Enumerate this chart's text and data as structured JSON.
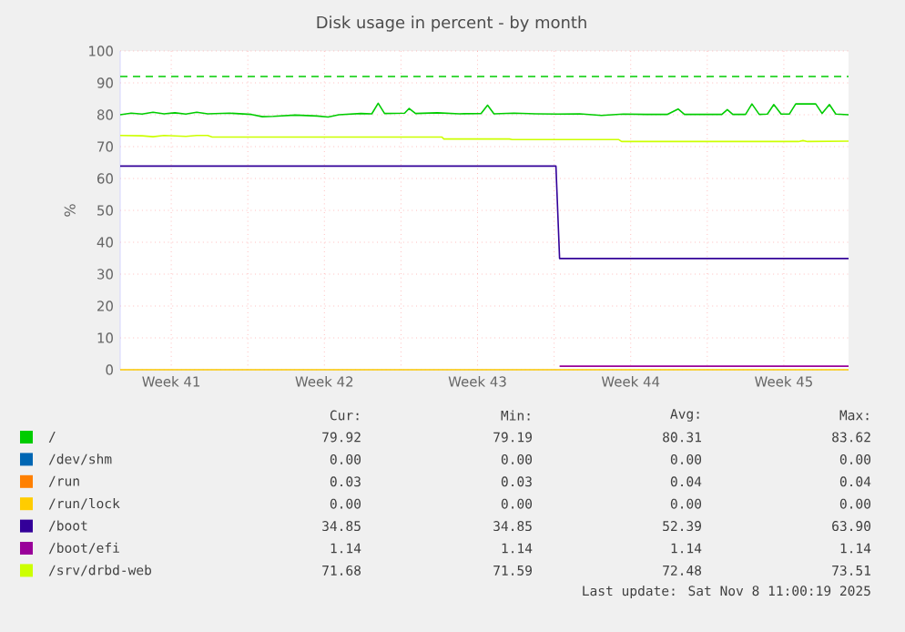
{
  "chart_data": {
    "type": "line",
    "title": "Disk usage in percent - by month",
    "ylabel": "%",
    "xlim": [
      "2025-10-06T04:00",
      "2025-11-08T11:00"
    ],
    "xticks": [
      {
        "value": "2025-10-08T12:00",
        "label": "Week 41"
      },
      {
        "value": "2025-10-12T00:00",
        "label": null
      },
      {
        "value": "2025-10-15T12:00",
        "label": "Week 42"
      },
      {
        "value": "2025-10-19T00:00",
        "label": null
      },
      {
        "value": "2025-10-22T12:00",
        "label": "Week 43"
      },
      {
        "value": "2025-10-26T00:00",
        "label": null
      },
      {
        "value": "2025-10-29T12:00",
        "label": "Week 44"
      },
      {
        "value": "2025-11-02T00:00",
        "label": null
      },
      {
        "value": "2025-11-05T12:00",
        "label": "Week 45"
      }
    ],
    "ylim": [
      0,
      100
    ],
    "yticks": [
      0,
      10,
      20,
      30,
      40,
      50,
      60,
      70,
      80,
      90,
      100
    ],
    "grid": true,
    "legend": "bottom",
    "marker": "none",
    "line_style": "solid",
    "ref_lines": [
      {
        "axis": "y",
        "value": 92,
        "color": "#00cc00",
        "line_style": "dashed"
      }
    ],
    "series": [
      {
        "name": "/",
        "color": "#00cc00",
        "x": [
          "2025-10-06T04:00",
          "2025-10-06T16:00",
          "2025-10-07T04:00",
          "2025-10-07T16:00",
          "2025-10-08T04:00",
          "2025-10-08T16:00",
          "2025-10-09T04:00",
          "2025-10-09T16:00",
          "2025-10-10T04:00",
          "2025-10-11T04:00",
          "2025-10-12T04:00",
          "2025-10-12T16:00",
          "2025-10-13T04:00",
          "2025-10-14T04:00",
          "2025-10-15T04:00",
          "2025-10-15T16:00",
          "2025-10-16T04:00",
          "2025-10-17T04:00",
          "2025-10-17T16:00",
          "2025-10-17T23:00",
          "2025-10-18T06:00",
          "2025-10-19T04:00",
          "2025-10-19T09:00",
          "2025-10-19T16:00",
          "2025-10-20T16:00",
          "2025-10-21T16:00",
          "2025-10-22T16:00",
          "2025-10-22T23:00",
          "2025-10-23T06:00",
          "2025-10-24T04:00",
          "2025-10-25T04:00",
          "2025-10-26T04:00",
          "2025-10-27T04:00",
          "2025-10-28T04:00",
          "2025-10-29T04:00",
          "2025-10-30T04:00",
          "2025-10-31T04:00",
          "2025-10-31T16:00",
          "2025-10-31T23:00",
          "2025-11-02T16:00",
          "2025-11-02T22:00",
          "2025-11-03T04:00",
          "2025-11-03T18:00",
          "2025-11-04T01:00",
          "2025-11-04T09:00",
          "2025-11-04T18:00",
          "2025-11-05T01:00",
          "2025-11-05T09:00",
          "2025-11-05T18:00",
          "2025-11-06T01:00",
          "2025-11-06T23:00",
          "2025-11-07T06:00",
          "2025-11-07T14:00",
          "2025-11-07T21:00",
          "2025-11-08T11:00"
        ],
        "values": [
          80,
          80.5,
          80.2,
          80.8,
          80.3,
          80.6,
          80.2,
          80.8,
          80.3,
          80.5,
          80.1,
          79.4,
          79.5,
          79.9,
          79.6,
          79.3,
          80,
          80.4,
          80.3,
          83.6,
          80.4,
          80.5,
          82,
          80.4,
          80.6,
          80.3,
          80.4,
          83,
          80.3,
          80.5,
          80.3,
          80.2,
          80.3,
          79.8,
          80.2,
          80.1,
          80.1,
          81.8,
          80.1,
          80.1,
          81.6,
          80.1,
          80.1,
          83.4,
          80.1,
          80.2,
          83.2,
          80.2,
          80.2,
          83.4,
          83.4,
          80.4,
          83.2,
          80.2,
          80
        ]
      },
      {
        "name": "/dev/shm",
        "color": "#0066b3"
      },
      {
        "name": "/run",
        "color": "#ff8000"
      },
      {
        "name": "/run/lock",
        "color": "#ffcc00",
        "x": [
          "2025-10-06T04:00",
          "2025-11-08T11:00"
        ],
        "values": [
          0,
          0
        ]
      },
      {
        "name": "/boot",
        "color": "#330099",
        "x": [
          "2025-10-06T04:00",
          "2025-10-26T02:00",
          "2025-10-26T06:00",
          "2025-11-08T11:00"
        ],
        "values": [
          63.9,
          63.9,
          34.9,
          34.9
        ]
      },
      {
        "name": "/boot/efi",
        "color": "#990099",
        "x": [
          "2025-10-26T06:00",
          "2025-11-08T11:00"
        ],
        "values": [
          1.1,
          1.1
        ]
      },
      {
        "name": "/srv/drbd-web",
        "color": "#ccff00",
        "x": [
          "2025-10-06T04:00",
          "2025-10-07T04:00",
          "2025-10-07T16:00",
          "2025-10-08T04:00",
          "2025-10-09T04:00",
          "2025-10-09T16:00",
          "2025-10-10T04:00",
          "2025-10-10T09:00",
          "2025-10-20T21:00",
          "2025-10-20T23:00",
          "2025-10-23T23:00",
          "2025-10-24T02:00",
          "2025-10-28T23:00",
          "2025-10-29T02:00",
          "2025-11-06T04:00",
          "2025-11-06T09:00",
          "2025-11-06T14:00",
          "2025-11-08T11:00"
        ],
        "values": [
          73.5,
          73.4,
          73.1,
          73.5,
          73.2,
          73.5,
          73.5,
          73,
          73,
          72.4,
          72.4,
          72.2,
          72.2,
          71.6,
          71.6,
          71.9,
          71.6,
          71.7
        ]
      }
    ],
    "annotations": [
      "Cur:",
      "Min:",
      "Avg:",
      "Max:",
      "79.92",
      "79.19",
      "80.31",
      "83.62",
      "0.00",
      "0.00",
      "0.00",
      "0.00",
      "0.03",
      "0.03",
      "0.04",
      "0.04",
      "0.00",
      "0.00",
      "0.00",
      "0.00",
      "34.85",
      "34.85",
      "52.39",
      "63.90",
      "1.14",
      "1.14",
      "1.14",
      "1.14",
      "71.68",
      "71.59",
      "72.48",
      "73.51",
      "Last update: Sat Nov  8 11:00:19 2025"
    ]
  }
}
